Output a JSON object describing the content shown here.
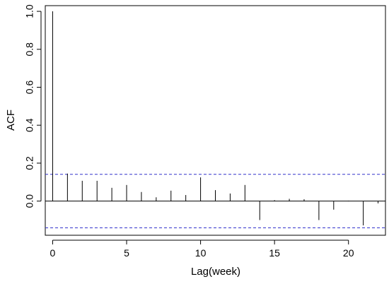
{
  "chart_data": {
    "type": "bar",
    "style": "acf-spike",
    "xlabel": "Lag(week)",
    "ylabel": "ACF",
    "xlim": [
      -0.5,
      22.5
    ],
    "ylim": [
      -0.18,
      1.03
    ],
    "x_ticks": [
      0,
      5,
      10,
      15,
      20
    ],
    "y_ticks": [
      0.0,
      0.2,
      0.4,
      0.6,
      0.8,
      1.0
    ],
    "x_tick_labels": [
      "0",
      "5",
      "10",
      "15",
      "20"
    ],
    "y_tick_labels": [
      "0.0",
      "0.2",
      "0.4",
      "0.6",
      "0.8",
      "1.0"
    ],
    "lags": [
      0,
      1,
      2,
      3,
      4,
      5,
      6,
      7,
      8,
      9,
      10,
      11,
      12,
      13,
      14,
      15,
      16,
      17,
      18,
      19,
      20,
      21,
      22
    ],
    "acf": [
      1.0,
      0.145,
      0.107,
      0.107,
      0.07,
      0.085,
      0.048,
      0.02,
      0.055,
      0.032,
      0.125,
      0.058,
      0.04,
      0.085,
      -0.1,
      0.005,
      0.012,
      0.01,
      -0.1,
      -0.045,
      0.002,
      -0.128,
      -0.012
    ],
    "confidence_bounds": [
      0.141,
      -0.141
    ],
    "colors": {
      "spikes": "#000000",
      "confidence_line": "#3333cc",
      "zero_line": "#000000",
      "axes": "#000000"
    },
    "grid": false
  }
}
